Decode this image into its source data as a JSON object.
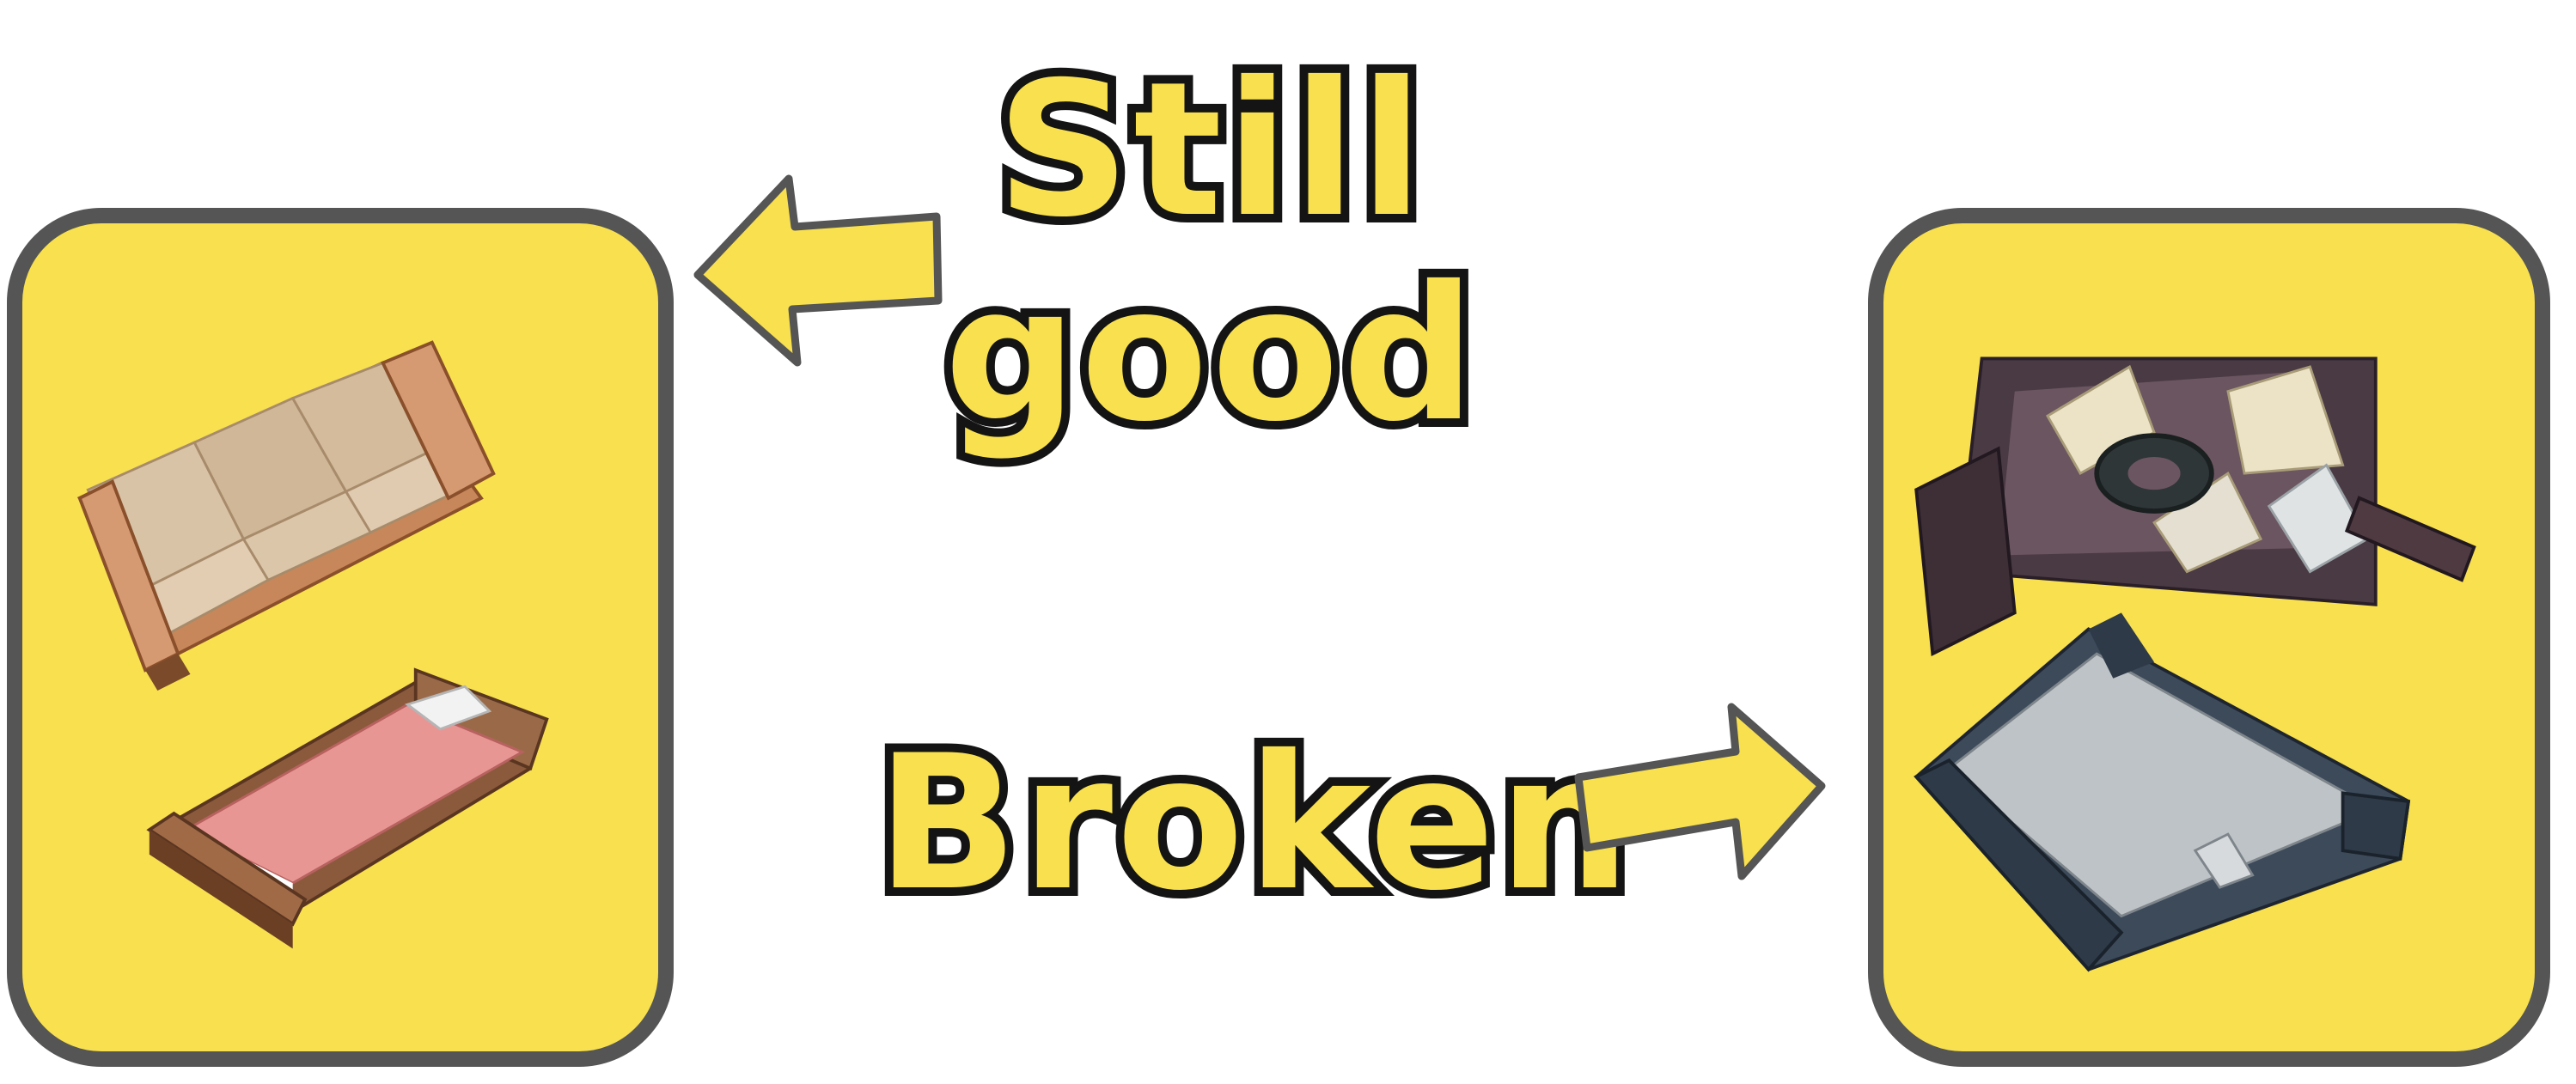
{
  "labels": {
    "still_good": "Still\ngood",
    "broken": "Broken"
  },
  "bins": {
    "left": {
      "contents": [
        "sofa",
        "bed"
      ]
    },
    "right": {
      "contents": [
        "broken-marble-table",
        "broken-bed"
      ]
    }
  },
  "colors": {
    "accent": "#f8e04e",
    "bin_border": "#555555",
    "text_outline": "#141414",
    "background": "#ffffff"
  },
  "icons": [
    "arrow-left-icon",
    "arrow-right-icon"
  ]
}
